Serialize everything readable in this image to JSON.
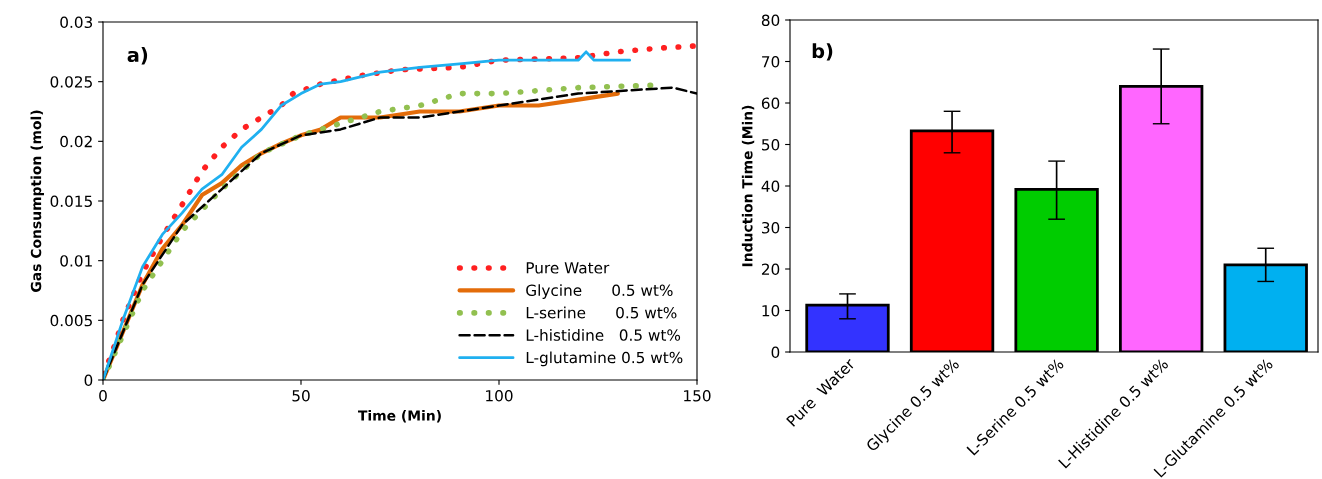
{
  "chart_data": [
    {
      "type": "line",
      "xlabel": "Time (Min)",
      "ylabel": "Gas Consumption (mol)",
      "annotations": [
        "a)"
      ],
      "xlim": [
        0,
        150
      ],
      "xticks": [
        0,
        50,
        100,
        150
      ],
      "ylim": [
        0,
        0.03
      ],
      "yticks": [
        0,
        0.005,
        0.01,
        0.015,
        0.02,
        0.025,
        0.03
      ],
      "grid": false,
      "legend": "bottom right",
      "series": [
        {
          "name": "Pure Water",
          "color": "#ff2020",
          "line_style": "dotted",
          "x": [
            0,
            2,
            5,
            10,
            15,
            20,
            25,
            30,
            35,
            40,
            45,
            48,
            55,
            65,
            75,
            90,
            100,
            120,
            130,
            140,
            150
          ],
          "values": [
            0.0005,
            0.002,
            0.005,
            0.009,
            0.012,
            0.0147,
            0.0175,
            0.0195,
            0.021,
            0.022,
            0.023,
            0.024,
            0.0248,
            0.0255,
            0.026,
            0.0262,
            0.0268,
            0.027,
            0.0275,
            0.0278,
            0.028
          ]
        },
        {
          "name": "Glycine      0.5 wt%",
          "color": "#e36c0a",
          "line_style": "solid",
          "x": [
            0,
            5,
            10,
            15,
            20,
            25,
            30,
            35,
            40,
            45,
            50,
            55,
            60,
            70,
            80,
            90,
            100,
            110,
            120,
            130
          ],
          "values": [
            0,
            0.004,
            0.008,
            0.011,
            0.013,
            0.0155,
            0.0165,
            0.018,
            0.019,
            0.0198,
            0.0205,
            0.021,
            0.022,
            0.022,
            0.0225,
            0.0225,
            0.023,
            0.023,
            0.0235,
            0.024
          ]
        },
        {
          "name": "L-serine      0.5 wt%",
          "color": "#92c050",
          "line_style": "dotted",
          "x": [
            0,
            10,
            20,
            30,
            40,
            50,
            60,
            70,
            80,
            90,
            100,
            120,
            139
          ],
          "values": [
            0,
            0.0075,
            0.0125,
            0.016,
            0.019,
            0.0205,
            0.0215,
            0.0225,
            0.023,
            0.024,
            0.024,
            0.0245,
            0.0247
          ]
        },
        {
          "name": "L-histidine   0.5 wt%",
          "color": "#000000",
          "line_style": "dashed",
          "x": [
            0,
            10,
            20,
            30,
            40,
            50,
            60,
            70,
            80,
            90,
            100,
            110,
            120,
            144,
            150
          ],
          "values": [
            0,
            0.008,
            0.013,
            0.016,
            0.019,
            0.0205,
            0.021,
            0.022,
            0.022,
            0.0225,
            0.023,
            0.0235,
            0.024,
            0.0245,
            0.024
          ]
        },
        {
          "name": "L-glutamine 0.5 wt%",
          "color": "#1fb0f0",
          "line_style": "solid",
          "x": [
            0,
            5,
            10,
            15,
            20,
            25,
            30,
            35,
            40,
            45,
            50,
            55,
            60,
            70,
            80,
            90,
            100,
            120,
            122,
            124,
            133
          ],
          "values": [
            0,
            0.005,
            0.0095,
            0.0122,
            0.014,
            0.016,
            0.0172,
            0.0195,
            0.021,
            0.023,
            0.024,
            0.0248,
            0.025,
            0.0258,
            0.0262,
            0.0265,
            0.0268,
            0.0268,
            0.0275,
            0.0268,
            0.0268
          ]
        }
      ]
    },
    {
      "type": "bar",
      "ylabel": "Induction Time (Min)",
      "annotations": [
        "b)"
      ],
      "ylim": [
        0,
        80
      ],
      "yticks": [
        0,
        10,
        20,
        30,
        40,
        50,
        60,
        70,
        80
      ],
      "grid": false,
      "categories": [
        "Pure  Water",
        "Glycine 0.5 wt%",
        "L-Serine 0.5 wt%",
        "L-Histidine 0.5 wt%",
        "L-Glutamine 0.5 wt%"
      ],
      "values": [
        11.3,
        53.3,
        39.2,
        64.0,
        21.0
      ],
      "colors": [
        "#3333ff",
        "#ff0000",
        "#00cc00",
        "#ff66ff",
        "#00b0f0"
      ],
      "errors": [
        [
          8,
          14
        ],
        [
          48,
          58
        ],
        [
          32,
          46
        ],
        [
          55,
          73
        ],
        [
          17,
          25
        ]
      ]
    }
  ]
}
